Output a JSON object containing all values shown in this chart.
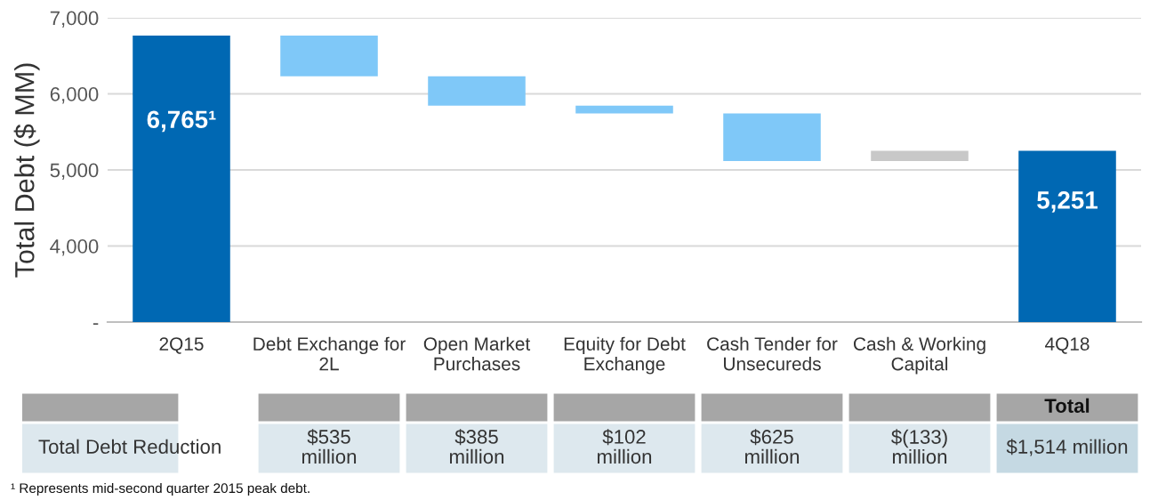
{
  "chart_data": {
    "type": "bar",
    "ylabel": "Total Debt ($ MM)",
    "categories": [
      "2Q15",
      "Debt Exchange for\n2L",
      "Open Market\nPurchases",
      "Equity for Debt\nExchange",
      "Cash Tender for\nUnsecureds",
      "Cash & Working\nCapital",
      "4Q18"
    ],
    "values": [
      6765,
      535,
      385,
      102,
      625,
      133,
      5251
    ],
    "base": [
      0,
      6230,
      5845,
      5743,
      5118,
      5118,
      0
    ],
    "colors": [
      "#0068b3",
      "#7fc8f8",
      "#7fc8f8",
      "#7fc8f8",
      "#7fc8f8",
      "#c8c8c8",
      "#0068b3"
    ],
    "value_labels": [
      "6,765¹",
      null,
      null,
      null,
      null,
      null,
      "5,251"
    ],
    "ylim": [
      3000,
      7000
    ],
    "yticks": [
      {
        "value": 3000,
        "label": "-"
      },
      {
        "value": 4000,
        "label": "4,000"
      },
      {
        "value": 5000,
        "label": "5,000"
      },
      {
        "value": 6000,
        "label": "6,000"
      },
      {
        "value": 7000,
        "label": "7,000"
      }
    ],
    "grid": "y",
    "legend": false,
    "annotations": [
      "Total Debt Reduction",
      "$535\nmillion",
      "$385\nmillion",
      "$102\nmillion",
      "$625\nmillion",
      "$(133)\nmillion",
      "Total",
      "$1,514 million",
      "¹ Represents mid-second quarter 2015 peak debt."
    ]
  }
}
